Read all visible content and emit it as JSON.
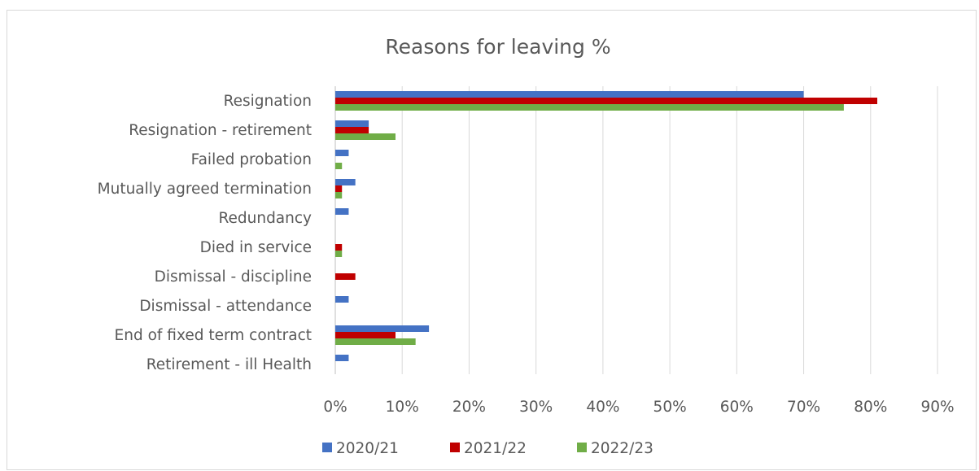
{
  "chart_data": {
    "type": "bar",
    "orientation": "horizontal",
    "title": "Reasons for leaving %",
    "categories": [
      "Resignation",
      "Resignation - retirement",
      "Failed probation",
      "Mutually agreed termination",
      "Redundancy",
      "Died in service",
      "Dismissal - discipline",
      "Dismissal - attendance",
      "End of fixed term contract",
      "Retirement - ill Health"
    ],
    "series": [
      {
        "name": "2020/21",
        "color": "#4472c4",
        "values": [
          70,
          5,
          2,
          3,
          2,
          0,
          0,
          2,
          14,
          2
        ]
      },
      {
        "name": "2021/22",
        "color": "#c00000",
        "values": [
          81,
          5,
          0,
          1,
          0,
          1,
          3,
          0,
          9,
          0
        ]
      },
      {
        "name": "2022/23",
        "color": "#70ad47",
        "values": [
          76,
          9,
          1,
          1,
          0,
          1,
          0,
          0,
          12,
          0
        ]
      }
    ],
    "xlim": [
      0,
      90
    ],
    "x_ticks": [
      0,
      10,
      20,
      30,
      40,
      50,
      60,
      70,
      80,
      90
    ],
    "x_tick_labels": [
      "0%",
      "10%",
      "20%",
      "30%",
      "40%",
      "50%",
      "60%",
      "70%",
      "80%",
      "90%"
    ],
    "xlabel": "",
    "ylabel": "",
    "grid": "vertical",
    "legend": "bottom"
  }
}
